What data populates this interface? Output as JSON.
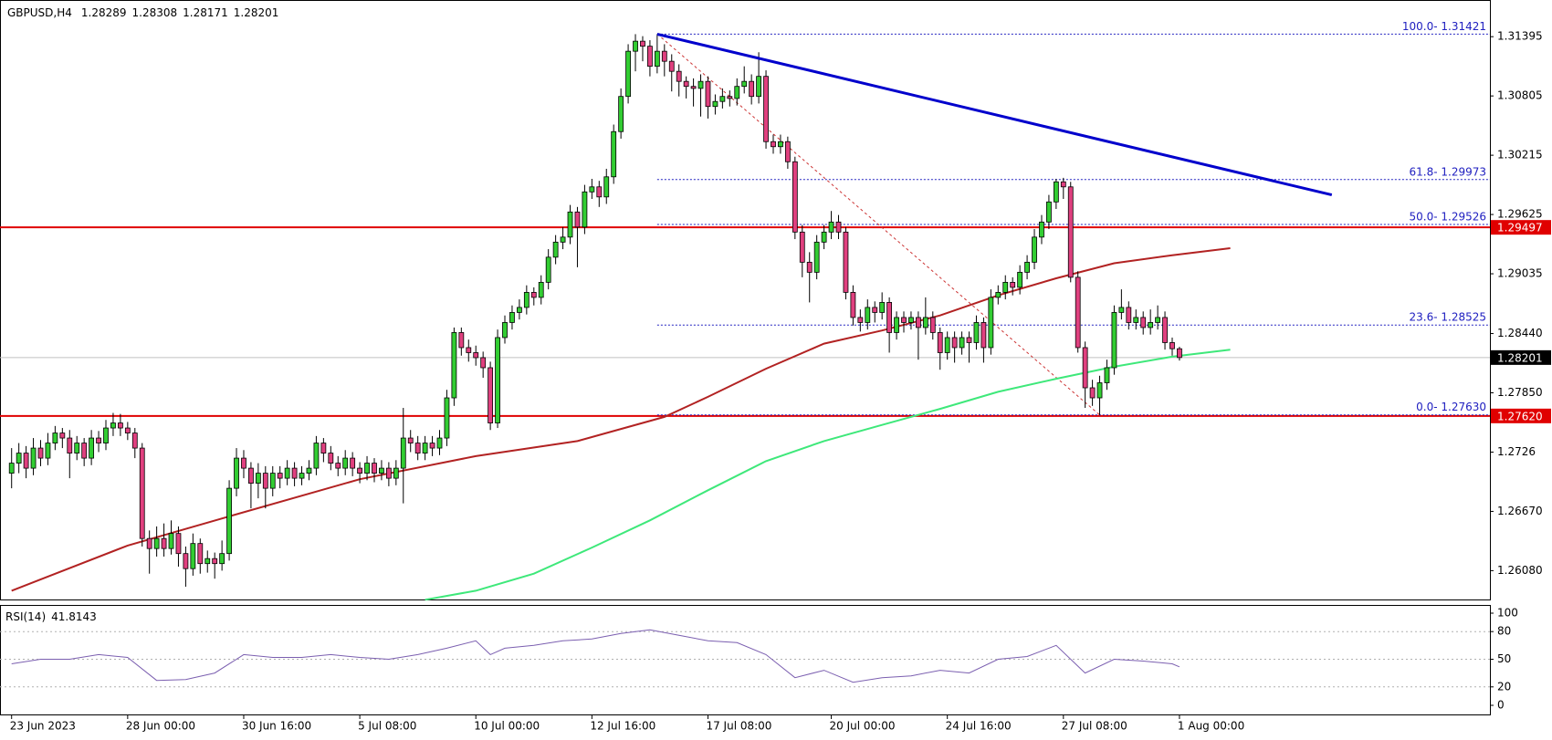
{
  "chart_data": {
    "type": "candlestick",
    "symbol": "GBPUSD,H4",
    "last_ohlc": [
      1.28289,
      1.28308,
      1.28171,
      1.28201
    ],
    "bull_color": "#32cd32",
    "bear_color": "#e0407f",
    "xlim": [
      -1.6,
      203.8
    ],
    "ylim": [
      1.25793,
      1.3176
    ],
    "yticks": [
      1.31395,
      1.30805,
      1.30215,
      1.29625,
      1.29035,
      {
        "value": 1.2844,
        "label": "1.28440"
      },
      {
        "value": 1.2785,
        "label": "1.27850"
      },
      1.2726,
      {
        "value": 1.2667,
        "label": "1.26670"
      },
      {
        "value": 1.2608,
        "label": "1.26080"
      }
    ],
    "xticks": [
      {
        "value": 0,
        "label": "23 Jun 2023"
      },
      {
        "value": 16,
        "label": "28 Jun 00:00"
      },
      {
        "value": 32,
        "label": "30 Jun 16:00"
      },
      {
        "value": 48,
        "label": "5 Jul 08:00"
      },
      {
        "value": 64,
        "label": "10 Jul 00:00"
      },
      {
        "value": 80,
        "label": "12 Jul 16:00"
      },
      {
        "value": 96,
        "label": "17 Jul 08:00"
      },
      {
        "value": 113,
        "label": "20 Jul 00:00"
      },
      {
        "value": 129,
        "label": "24 Jul 16:00"
      },
      {
        "value": 145,
        "label": "27 Jul 08:00"
      },
      {
        "value": 161,
        "label": "1 Aug 00:00"
      }
    ],
    "ohlc": [
      [
        1.2705,
        1.273,
        1.269,
        1.2715
      ],
      [
        1.2715,
        1.2735,
        1.2705,
        1.2725
      ],
      [
        1.2725,
        1.2732,
        1.27,
        1.271
      ],
      [
        1.271,
        1.274,
        1.2703,
        1.273
      ],
      [
        1.273,
        1.2738,
        1.2712,
        1.272
      ],
      [
        1.272,
        1.2745,
        1.2713,
        1.2735
      ],
      [
        1.2735,
        1.2752,
        1.2728,
        1.2745
      ],
      [
        1.2745,
        1.275,
        1.273,
        1.274
      ],
      [
        1.274,
        1.2748,
        1.27,
        1.2725
      ],
      [
        1.2725,
        1.2742,
        1.2718,
        1.2735
      ],
      [
        1.2735,
        1.274,
        1.2712,
        1.272
      ],
      [
        1.272,
        1.2748,
        1.2713,
        1.274
      ],
      [
        1.274,
        1.2747,
        1.2726,
        1.2735
      ],
      [
        1.2735,
        1.2758,
        1.2728,
        1.275
      ],
      [
        1.275,
        1.2765,
        1.2742,
        1.2755
      ],
      [
        1.2755,
        1.2764,
        1.2742,
        1.275
      ],
      [
        1.275,
        1.2756,
        1.2738,
        1.2745
      ],
      [
        1.2745,
        1.275,
        1.272,
        1.273
      ],
      [
        1.273,
        1.2735,
        1.2632,
        1.264
      ],
      [
        1.264,
        1.2648,
        1.2605,
        1.263
      ],
      [
        1.263,
        1.2652,
        1.2622,
        1.264
      ],
      [
        1.264,
        1.2655,
        1.2622,
        1.263
      ],
      [
        1.263,
        1.2658,
        1.2624,
        1.2645
      ],
      [
        1.2645,
        1.2652,
        1.2612,
        1.2625
      ],
      [
        1.2625,
        1.2632,
        1.2592,
        1.261
      ],
      [
        1.261,
        1.2645,
        1.2603,
        1.2635
      ],
      [
        1.2635,
        1.264,
        1.2605,
        1.2615
      ],
      [
        1.2615,
        1.2628,
        1.2606,
        1.262
      ],
      [
        1.262,
        1.2626,
        1.26,
        1.2615
      ],
      [
        1.2615,
        1.2638,
        1.2608,
        1.2625
      ],
      [
        1.2625,
        1.2698,
        1.2618,
        1.269
      ],
      [
        1.269,
        1.273,
        1.2682,
        1.272
      ],
      [
        1.272,
        1.2728,
        1.27,
        1.271
      ],
      [
        1.271,
        1.2716,
        1.267,
        1.2695
      ],
      [
        1.2695,
        1.2715,
        1.268,
        1.2705
      ],
      [
        1.2705,
        1.2712,
        1.267,
        1.269
      ],
      [
        1.269,
        1.2712,
        1.2682,
        1.2705
      ],
      [
        1.2705,
        1.2712,
        1.269,
        1.27
      ],
      [
        1.27,
        1.2718,
        1.2693,
        1.271
      ],
      [
        1.271,
        1.2716,
        1.2692,
        1.27
      ],
      [
        1.27,
        1.2712,
        1.2693,
        1.2705
      ],
      [
        1.2705,
        1.2718,
        1.2698,
        1.271
      ],
      [
        1.271,
        1.2742,
        1.2703,
        1.2735
      ],
      [
        1.2735,
        1.274,
        1.2716,
        1.2725
      ],
      [
        1.2725,
        1.2732,
        1.2708,
        1.2715
      ],
      [
        1.2715,
        1.2722,
        1.2702,
        1.271
      ],
      [
        1.271,
        1.2728,
        1.2703,
        1.272
      ],
      [
        1.272,
        1.2726,
        1.2702,
        1.271
      ],
      [
        1.271,
        1.2716,
        1.2695,
        1.2705
      ],
      [
        1.2705,
        1.2722,
        1.2698,
        1.2715
      ],
      [
        1.2715,
        1.272,
        1.2696,
        1.2705
      ],
      [
        1.2705,
        1.2718,
        1.2698,
        1.271
      ],
      [
        1.271,
        1.2716,
        1.2692,
        1.27
      ],
      [
        1.27,
        1.2718,
        1.2693,
        1.271
      ],
      [
        1.271,
        1.277,
        1.2675,
        1.274
      ],
      [
        1.274,
        1.2748,
        1.2726,
        1.2735
      ],
      [
        1.2735,
        1.2742,
        1.2718,
        1.2725
      ],
      [
        1.2725,
        1.2742,
        1.2718,
        1.2735
      ],
      [
        1.2735,
        1.2742,
        1.2722,
        1.273
      ],
      [
        1.273,
        1.2748,
        1.2723,
        1.274
      ],
      [
        1.274,
        1.2788,
        1.2732,
        1.278
      ],
      [
        1.278,
        1.285,
        1.2772,
        1.2845
      ],
      [
        1.2845,
        1.285,
        1.2822,
        1.283
      ],
      [
        1.283,
        1.2838,
        1.2816,
        1.2825
      ],
      [
        1.2825,
        1.2832,
        1.2812,
        1.282
      ],
      [
        1.282,
        1.2826,
        1.28,
        1.281
      ],
      [
        1.281,
        1.2816,
        1.2748,
        1.2755
      ],
      [
        1.2755,
        1.2848,
        1.275,
        1.284
      ],
      [
        1.284,
        1.2862,
        1.2834,
        1.2855
      ],
      [
        1.2855,
        1.2872,
        1.2848,
        1.2865
      ],
      [
        1.2865,
        1.2878,
        1.2858,
        1.287
      ],
      [
        1.287,
        1.2892,
        1.2863,
        1.2885
      ],
      [
        1.2885,
        1.289,
        1.2872,
        1.288
      ],
      [
        1.288,
        1.2902,
        1.2873,
        1.2895
      ],
      [
        1.2895,
        1.2928,
        1.2888,
        1.292
      ],
      [
        1.292,
        1.2942,
        1.2913,
        1.2935
      ],
      [
        1.2935,
        1.295,
        1.2928,
        1.294
      ],
      [
        1.294,
        1.2972,
        1.2933,
        1.2965
      ],
      [
        1.2965,
        1.297,
        1.291,
        1.295
      ],
      [
        1.295,
        1.2992,
        1.2943,
        1.2985
      ],
      [
        1.2985,
        1.2998,
        1.2978,
        1.299
      ],
      [
        1.299,
        1.2996,
        1.297,
        1.298
      ],
      [
        1.298,
        1.3008,
        1.2973,
        1.3
      ],
      [
        1.3,
        1.3052,
        1.2993,
        1.3045
      ],
      [
        1.3045,
        1.3088,
        1.3038,
        1.308
      ],
      [
        1.308,
        1.3132,
        1.3073,
        1.3125
      ],
      [
        1.3125,
        1.3142,
        1.3105,
        1.3135
      ],
      [
        1.3135,
        1.314,
        1.3115,
        1.313
      ],
      [
        1.313,
        1.3136,
        1.31,
        1.311
      ],
      [
        1.311,
        1.3142,
        1.3103,
        1.3125
      ],
      [
        1.3125,
        1.3132,
        1.31,
        1.3115
      ],
      [
        1.3115,
        1.3122,
        1.3085,
        1.3105
      ],
      [
        1.3105,
        1.3112,
        1.308,
        1.3095
      ],
      [
        1.3095,
        1.31,
        1.3078,
        1.309
      ],
      [
        1.309,
        1.3098,
        1.307,
        1.3088
      ],
      [
        1.3088,
        1.3102,
        1.306,
        1.3095
      ],
      [
        1.3095,
        1.31,
        1.3058,
        1.307
      ],
      [
        1.307,
        1.3082,
        1.3062,
        1.3075
      ],
      [
        1.3075,
        1.3088,
        1.3068,
        1.308
      ],
      [
        1.308,
        1.3086,
        1.307,
        1.3078
      ],
      [
        1.3078,
        1.3098,
        1.3071,
        1.309
      ],
      [
        1.309,
        1.311,
        1.3083,
        1.3095
      ],
      [
        1.3095,
        1.3102,
        1.3072,
        1.308
      ],
      [
        1.308,
        1.3124,
        1.3073,
        1.31
      ],
      [
        1.31,
        1.3106,
        1.3028,
        1.3035
      ],
      [
        1.3035,
        1.3042,
        1.3023,
        1.303
      ],
      [
        1.303,
        1.3042,
        1.3023,
        1.3035
      ],
      [
        1.3035,
        1.304,
        1.3008,
        1.3015
      ],
      [
        1.3015,
        1.302,
        1.2938,
        1.2945
      ],
      [
        1.2945,
        1.2952,
        1.29,
        1.2915
      ],
      [
        1.2915,
        1.2925,
        1.2875,
        1.2905
      ],
      [
        1.2905,
        1.2942,
        1.2898,
        1.2935
      ],
      [
        1.2935,
        1.2952,
        1.2928,
        1.2945
      ],
      [
        1.2945,
        1.2966,
        1.2938,
        1.2955
      ],
      [
        1.2955,
        1.2962,
        1.2938,
        1.2945
      ],
      [
        1.2945,
        1.295,
        1.2878,
        1.2885
      ],
      [
        1.2885,
        1.2892,
        1.2852,
        1.286
      ],
      [
        1.286,
        1.2868,
        1.2846,
        1.2855
      ],
      [
        1.2855,
        1.2878,
        1.2848,
        1.287
      ],
      [
        1.287,
        1.2876,
        1.2855,
        1.2865
      ],
      [
        1.2865,
        1.2885,
        1.2858,
        1.2875
      ],
      [
        1.2875,
        1.288,
        1.2825,
        1.2845
      ],
      [
        1.2845,
        1.2866,
        1.2838,
        1.286
      ],
      [
        1.286,
        1.2866,
        1.2845,
        1.2855
      ],
      [
        1.2855,
        1.2866,
        1.2848,
        1.286
      ],
      [
        1.286,
        1.2866,
        1.2818,
        1.285
      ],
      [
        1.285,
        1.288,
        1.2843,
        1.286
      ],
      [
        1.286,
        1.2866,
        1.2838,
        1.2845
      ],
      [
        1.2845,
        1.285,
        1.2808,
        1.2825
      ],
      [
        1.2825,
        1.2846,
        1.2818,
        1.284
      ],
      [
        1.284,
        1.2846,
        1.2815,
        1.283
      ],
      [
        1.283,
        1.2846,
        1.2823,
        1.284
      ],
      [
        1.284,
        1.2846,
        1.2815,
        1.2835
      ],
      [
        1.2835,
        1.2862,
        1.2828,
        1.2855
      ],
      [
        1.2855,
        1.286,
        1.2815,
        1.283
      ],
      [
        1.283,
        1.2888,
        1.2823,
        1.288
      ],
      [
        1.288,
        1.2892,
        1.2873,
        1.2885
      ],
      [
        1.2885,
        1.2902,
        1.2878,
        1.2895
      ],
      [
        1.2895,
        1.29,
        1.2882,
        1.289
      ],
      [
        1.289,
        1.2912,
        1.2883,
        1.2905
      ],
      [
        1.2905,
        1.2922,
        1.2898,
        1.2915
      ],
      [
        1.2915,
        1.2948,
        1.2908,
        1.294
      ],
      [
        1.294,
        1.2962,
        1.2933,
        1.2955
      ],
      [
        1.2955,
        1.2982,
        1.2948,
        1.2975
      ],
      [
        1.2975,
        1.2998,
        1.2968,
        1.2995
      ],
      [
        1.2995,
        1.2999,
        1.2978,
        1.299
      ],
      [
        1.299,
        1.2995,
        1.2895,
        1.29
      ],
      [
        1.29,
        1.2906,
        1.2825,
        1.283
      ],
      [
        1.283,
        1.2836,
        1.277,
        1.279
      ],
      [
        1.279,
        1.2798,
        1.2772,
        1.278
      ],
      [
        1.278,
        1.2802,
        1.2763,
        1.2795
      ],
      [
        1.2795,
        1.2818,
        1.2788,
        1.281
      ],
      [
        1.281,
        1.2872,
        1.2803,
        1.2865
      ],
      [
        1.2865,
        1.2888,
        1.2858,
        1.287
      ],
      [
        1.287,
        1.2876,
        1.2848,
        1.2855
      ],
      [
        1.2855,
        1.2868,
        1.2848,
        1.286
      ],
      [
        1.286,
        1.2866,
        1.2843,
        1.285
      ],
      [
        1.285,
        1.2868,
        1.2843,
        1.2855
      ],
      [
        1.2855,
        1.2872,
        1.2848,
        1.286
      ],
      [
        1.286,
        1.2866,
        1.2828,
        1.2835
      ],
      [
        1.2835,
        1.284,
        1.2822,
        1.28289
      ],
      [
        1.28289,
        1.28308,
        1.28171,
        1.28201
      ]
    ],
    "ma": [
      {
        "color": "#b22222",
        "x": [
          0,
          16,
          30,
          48,
          64,
          78,
          90,
          96,
          104,
          112,
          120,
          128,
          136,
          144,
          152,
          160,
          168
        ],
        "values": [
          1.2588,
          1.2633,
          1.2662,
          1.2699,
          1.2722,
          1.2737,
          1.2761,
          1.2781,
          1.2809,
          1.2834,
          1.2847,
          1.2862,
          1.2882,
          1.2899,
          1.2914,
          1.2922,
          1.2929
        ]
      },
      {
        "color": "#3ee87a",
        "x": [
          57,
          64,
          72,
          80,
          88,
          96,
          104,
          112,
          120,
          128,
          136,
          144,
          152,
          160,
          168
        ],
        "values": [
          1.2579,
          1.2588,
          1.2605,
          1.2631,
          1.2658,
          1.2688,
          1.2717,
          1.2737,
          1.2753,
          1.2769,
          1.2786,
          1.2799,
          1.2811,
          1.2821,
          1.2828
        ]
      }
    ],
    "trendline": {
      "color": "#0000cc",
      "x": [
        89,
        182
      ],
      "values": [
        1.3142,
        1.2982
      ]
    },
    "fib_diagonal": {
      "color": "#cc3333",
      "x": [
        89,
        150
      ],
      "values": [
        1.31421,
        1.2763
      ]
    },
    "fib_start": 89,
    "fib_levels": [
      {
        "value": 1.31421,
        "label": "100.0- 1.31421"
      },
      {
        "value": 1.29973,
        "label": "61.8- 1.29973"
      },
      {
        "value": 1.29526,
        "label": "50.0- 1.29526"
      },
      {
        "value": 1.28525,
        "label": "23.6- 1.28525"
      },
      {
        "value": 1.2763,
        "label": "0.0- 1.27630"
      }
    ],
    "price_lines": [
      {
        "value": 1.29497,
        "color": "#e00000"
      },
      {
        "value": 1.28201,
        "color": "#c0c0c0",
        "box": "#000000"
      },
      {
        "value": 1.2762,
        "label": "1.27620",
        "color": "#e00000"
      }
    ],
    "rsi_name": "RSI(14)",
    "rsi_value": 41.8143,
    "rsi_ylim": [
      -9.9,
      108.9
    ],
    "rsi_yticks": [
      100,
      80,
      50,
      20,
      0
    ],
    "rsi_levels": [
      80,
      50,
      20
    ],
    "rsi": {
      "color": "#7b5fb0",
      "x": [
        0,
        4,
        8,
        12,
        16,
        20,
        24,
        28,
        32,
        36,
        40,
        44,
        48,
        52,
        56,
        60,
        64,
        66,
        68,
        72,
        76,
        80,
        84,
        88,
        92,
        96,
        100,
        104,
        108,
        112,
        116,
        120,
        124,
        128,
        132,
        136,
        140,
        144,
        148,
        152,
        156,
        160,
        161
      ],
      "values": [
        45,
        50,
        50,
        55,
        52,
        27,
        28,
        35,
        55,
        52,
        52,
        55,
        52,
        50,
        55,
        62,
        70,
        55,
        62,
        65,
        70,
        72,
        78,
        82,
        76,
        70,
        68,
        55,
        30,
        38,
        25,
        30,
        32,
        38,
        35,
        50,
        53,
        65,
        35,
        50,
        48,
        45,
        41.8143
      ]
    }
  }
}
